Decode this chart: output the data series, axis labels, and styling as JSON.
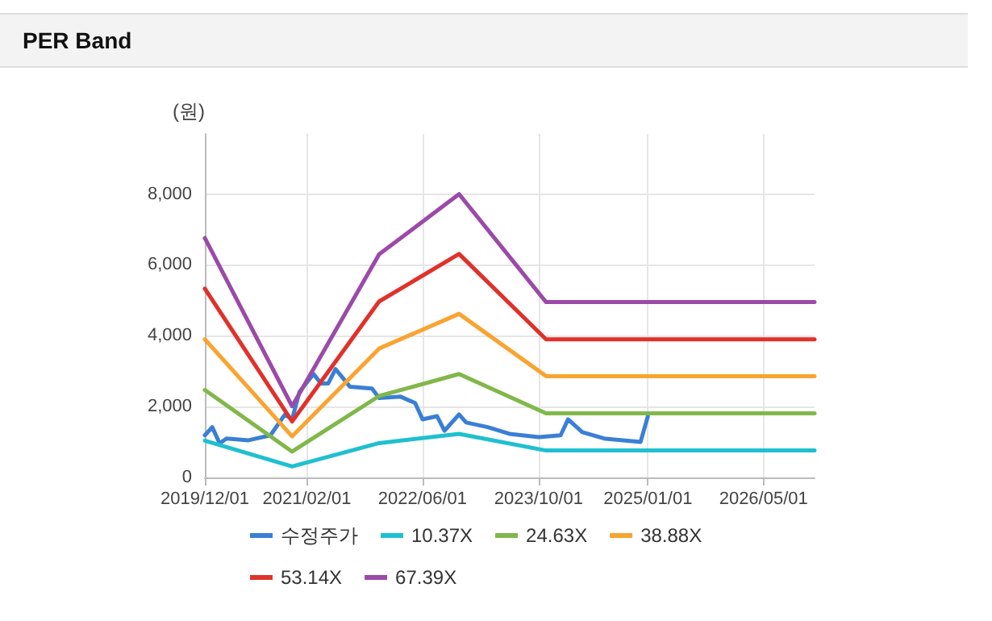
{
  "chart_data": {
    "type": "line",
    "title": "PER Band",
    "ylabel": "(원)",
    "xlim": [
      "2019-12-01",
      "2026-12-01"
    ],
    "xticks": [
      {
        "value": "2019-12-01",
        "label": "2019/12/01"
      },
      {
        "value": "2021-02-01",
        "label": "2021/02/01"
      },
      {
        "value": "2022-06-01",
        "label": "2022/06/01"
      },
      {
        "value": "2023-10-01",
        "label": "2023/10/01"
      },
      {
        "value": "2025-01-01",
        "label": "2025/01/01"
      },
      {
        "value": "2026-05-01",
        "label": "2026/05/01"
      }
    ],
    "ylim": [
      0,
      9700
    ],
    "yticks": [
      0,
      {
        "value": 2000,
        "label": "2,000"
      },
      {
        "value": 4000,
        "label": "4,000"
      },
      {
        "value": 6000,
        "label": "6,000"
      },
      {
        "value": 8000,
        "label": "8,000"
      }
    ],
    "grid": true,
    "legend": "bottom",
    "marker": "none",
    "line_style": "solid",
    "series": [
      {
        "name": "수정주가",
        "color": "#3a7fd5",
        "x": [
          "2019-12-01",
          "2020-01-01",
          "2020-02-01",
          "2020-03-01",
          "2020-06-01",
          "2020-09-01",
          "2020-11-01",
          "2020-12-01",
          "2021-01-01",
          "2021-03-01",
          "2021-04-01",
          "2021-05-01",
          "2021-06-01",
          "2021-08-01",
          "2021-11-01",
          "2021-12-01",
          "2022-03-01",
          "2022-05-01",
          "2022-06-01",
          "2022-08-01",
          "2022-09-01",
          "2022-11-01",
          "2022-12-01",
          "2023-03-01",
          "2023-06-01",
          "2023-10-01",
          "2024-01-01",
          "2024-02-01",
          "2024-04-01",
          "2024-07-01",
          "2024-12-01",
          "2025-01-01"
        ],
        "values": [
          1190,
          1420,
          960,
          1100,
          1050,
          1190,
          1780,
          1640,
          2420,
          2920,
          2650,
          2650,
          3060,
          2560,
          2510,
          2240,
          2280,
          2100,
          1640,
          1730,
          1320,
          1780,
          1550,
          1420,
          1230,
          1140,
          1190,
          1640,
          1280,
          1100,
          1000,
          1730
        ]
      },
      {
        "name": "10.37X",
        "color": "#1fc0cf",
        "x": [
          "2019-12-01",
          "2020-12-01",
          "2021-12-01",
          "2022-11-01",
          "2023-11-01",
          "2026-12-01"
        ],
        "values": [
          1040,
          310,
          970,
          1230,
          760,
          760
        ]
      },
      {
        "name": "24.63X",
        "color": "#80b84a",
        "x": [
          "2019-12-01",
          "2020-12-01",
          "2021-12-01",
          "2022-11-01",
          "2023-11-01",
          "2026-12-01"
        ],
        "values": [
          2470,
          730,
          2300,
          2920,
          1810,
          1810
        ]
      },
      {
        "name": "38.88X",
        "color": "#f9a431",
        "x": [
          "2019-12-01",
          "2020-12-01",
          "2021-12-01",
          "2022-11-01",
          "2023-11-01",
          "2026-12-01"
        ],
        "values": [
          3900,
          1160,
          3640,
          4620,
          2860,
          2860
        ]
      },
      {
        "name": "53.14X",
        "color": "#e0312b",
        "x": [
          "2019-12-01",
          "2020-12-01",
          "2021-12-01",
          "2022-11-01",
          "2023-11-01",
          "2026-12-01"
        ],
        "values": [
          5330,
          1580,
          4970,
          6310,
          3900,
          3900
        ]
      },
      {
        "name": "67.39X",
        "color": "#9b4aa8",
        "x": [
          "2019-12-01",
          "2020-12-01",
          "2021-12-01",
          "2022-11-01",
          "2023-11-01",
          "2026-12-01"
        ],
        "values": [
          6760,
          2010,
          6300,
          8000,
          4950,
          4950
        ]
      }
    ]
  }
}
